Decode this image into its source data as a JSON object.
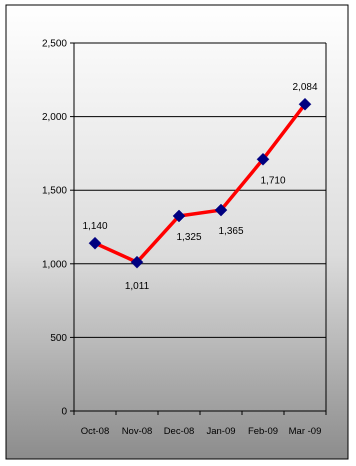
{
  "chart_data": {
    "type": "line",
    "categories": [
      "Oct-08",
      "Nov-08",
      "Dec-08",
      "Jan-09",
      "Feb-09",
      "Mar -09"
    ],
    "series": [
      {
        "values": [
          1140,
          1011,
          1325,
          1365,
          1710,
          2084
        ],
        "data_labels": [
          "1,140",
          "1,011",
          "1,325",
          "1,365",
          "1,710",
          "2,084"
        ],
        "line_color": "#ff0000",
        "marker_color": "#000080",
        "marker": "diamond"
      }
    ],
    "y_ticks": [
      {
        "value": 0,
        "label": "0"
      },
      {
        "value": 500,
        "label": "500"
      },
      {
        "value": 1000,
        "label": "1,000"
      },
      {
        "value": 1500,
        "label": "1,500"
      },
      {
        "value": 2000,
        "label": "2,000"
      },
      {
        "value": 2500,
        "label": "2,500"
      }
    ],
    "ylim": [
      0,
      2500
    ],
    "grid": true,
    "legend": "none",
    "background": "gray-gradient"
  }
}
